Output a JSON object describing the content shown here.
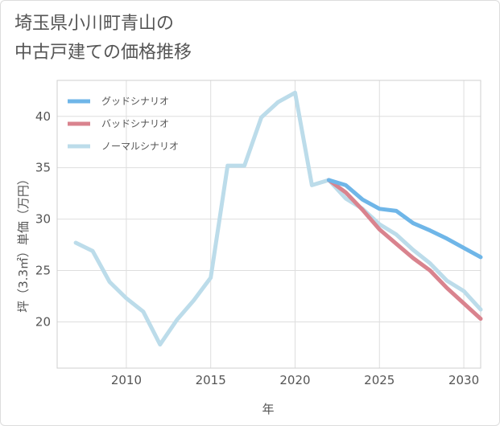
{
  "chart_data": {
    "type": "line",
    "title_lines": [
      "埼玉県小川町青山の",
      "中古戸建ての価格推移"
    ],
    "xlabel": "年",
    "ylabel": "坪（3.3㎡）単価（万円）",
    "xlim": [
      2005.9,
      2031
    ],
    "ylim": [
      15.5,
      43.5
    ],
    "x_ticks": [
      2010,
      2015,
      2020,
      2025,
      2030
    ],
    "y_ticks": [
      20,
      25,
      30,
      35,
      40
    ],
    "grid": true,
    "legend_position": "top-left",
    "series": [
      {
        "name": "グッドシナリオ",
        "color": "#6fb6e8",
        "x": [
          2022,
          2023,
          2024,
          2025,
          2026,
          2027,
          2028,
          2029,
          2030,
          2031
        ],
        "y": [
          33.8,
          33.3,
          31.9,
          31.0,
          30.8,
          29.6,
          28.9,
          28.1,
          27.2,
          26.3
        ]
      },
      {
        "name": "バッドシナリオ",
        "color": "#d9838e",
        "x": [
          2022,
          2023,
          2024,
          2025,
          2026,
          2027,
          2028,
          2029,
          2030,
          2031
        ],
        "y": [
          33.8,
          32.6,
          30.9,
          29.0,
          27.6,
          26.2,
          25.0,
          23.3,
          21.8,
          20.3
        ]
      },
      {
        "name": "ノーマルシナリオ",
        "color": "#bcdcea",
        "x": [
          2007,
          2008,
          2009,
          2010,
          2011,
          2012,
          2013,
          2014,
          2015,
          2016,
          2017,
          2018,
          2019,
          2020,
          2021,
          2022,
          2023,
          2024,
          2025,
          2026,
          2027,
          2028,
          2029,
          2030,
          2031
        ],
        "y": [
          27.7,
          26.9,
          23.9,
          22.3,
          21.0,
          17.8,
          20.2,
          22.1,
          24.3,
          35.2,
          35.2,
          39.9,
          41.4,
          42.3,
          33.3,
          33.8,
          32.0,
          31.0,
          29.5,
          28.5,
          27.0,
          25.7,
          24.0,
          23.0,
          21.2
        ]
      }
    ]
  }
}
